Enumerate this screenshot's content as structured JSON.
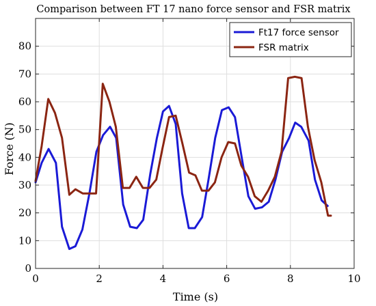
{
  "chart_data": {
    "type": "line",
    "title": "Comparison between FT 17 nano force sensor and FSR matrix",
    "xlabel": "Time (s)",
    "ylabel": "Force (N)",
    "xlim": [
      0,
      10
    ],
    "ylim": [
      0,
      90
    ],
    "xticks": [
      0,
      2,
      4,
      6,
      8,
      10
    ],
    "yticks": [
      0,
      10,
      20,
      30,
      40,
      50,
      60,
      70,
      80
    ],
    "grid": true,
    "legend_position": "top-right",
    "series": [
      {
        "name": "Ft17 force sensor",
        "color": "#1a1ad6",
        "x": [
          0,
          0.19,
          0.41,
          0.64,
          0.83,
          1.06,
          1.25,
          1.47,
          1.69,
          1.91,
          2.12,
          2.34,
          2.53,
          2.75,
          2.97,
          3.18,
          3.38,
          3.6,
          3.81,
          4.0,
          4.19,
          4.4,
          4.6,
          4.81,
          5.0,
          5.23,
          5.43,
          5.64,
          5.85,
          6.06,
          6.26,
          6.47,
          6.68,
          6.89,
          7.11,
          7.32,
          7.53,
          7.74,
          7.96,
          8.15,
          8.34,
          8.57,
          8.77,
          8.98,
          9.17
        ],
        "y": [
          31,
          38,
          43,
          38,
          15,
          7,
          8,
          14,
          27,
          42,
          48,
          51,
          47,
          23,
          15,
          14.5,
          17.5,
          34,
          47,
          56.5,
          58.5,
          52,
          27,
          14.5,
          14.5,
          18.5,
          32,
          47,
          57,
          58,
          54.5,
          40,
          26,
          21.5,
          22,
          24,
          32,
          42,
          47,
          52.5,
          51,
          46,
          32,
          24.5,
          22.5
        ]
      },
      {
        "name": "FSR matrix",
        "color": "#8b2512",
        "x": [
          0,
          0.19,
          0.4,
          0.61,
          0.83,
          1.06,
          1.25,
          1.48,
          1.69,
          1.9,
          2.11,
          2.32,
          2.52,
          2.74,
          2.95,
          3.16,
          3.37,
          3.58,
          3.79,
          3.98,
          4.19,
          4.4,
          4.61,
          4.82,
          5.02,
          5.22,
          5.43,
          5.63,
          5.84,
          6.05,
          6.26,
          6.46,
          6.67,
          6.88,
          7.09,
          7.3,
          7.51,
          7.72,
          7.93,
          8.14,
          8.35,
          8.55,
          8.76,
          8.97,
          9.18,
          9.27
        ],
        "y": [
          31.5,
          44,
          61,
          56,
          47,
          26.5,
          28.5,
          27,
          27,
          27,
          66.5,
          60,
          51,
          29,
          29,
          33,
          29,
          29,
          32,
          43,
          54.5,
          55,
          45,
          34.5,
          33.5,
          28,
          28,
          31,
          40,
          45.5,
          45,
          37,
          33,
          26,
          24,
          28,
          33,
          42,
          68.5,
          69,
          68.5,
          51,
          39,
          31,
          19,
          19
        ]
      }
    ]
  }
}
